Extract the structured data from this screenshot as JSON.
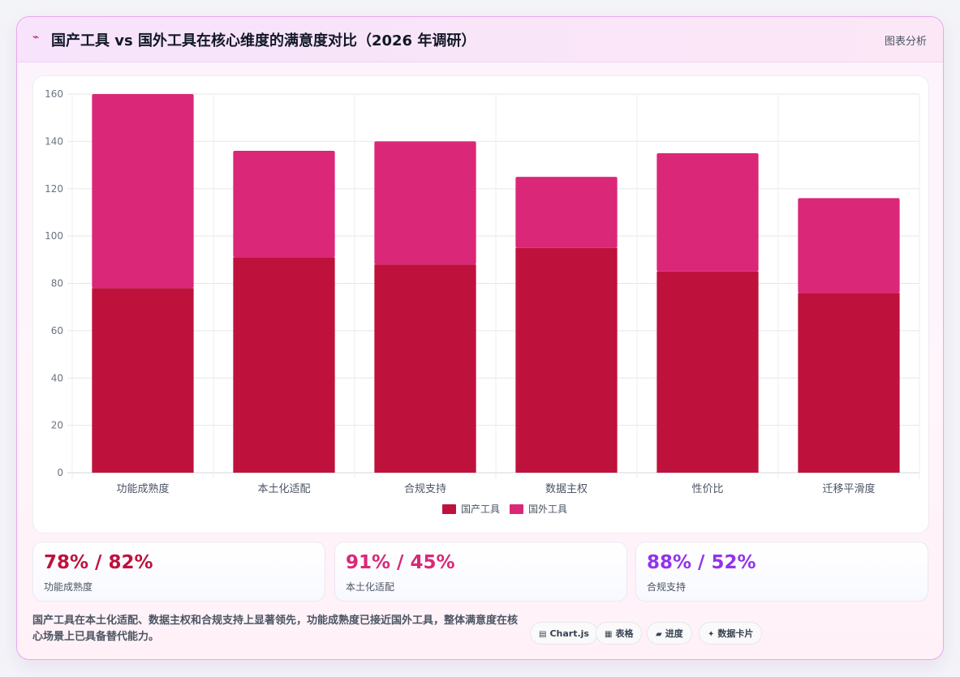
{
  "header": {
    "icon": "chart-line-icon",
    "icon_glyph": "⌁",
    "title": "国产工具 vs 国外工具在核心维度的满意度对比（2026 年调研）",
    "link": "图表分析"
  },
  "chart_data": {
    "type": "bar",
    "stacked": true,
    "categories": [
      "功能成熟度",
      "本土化适配",
      "合规支持",
      "数据主权",
      "性价比",
      "迁移平滑度"
    ],
    "series": [
      {
        "name": "国产工具",
        "values": [
          78,
          91,
          88,
          95,
          85,
          76
        ],
        "color": "#be123c"
      },
      {
        "name": "国外工具",
        "values": [
          82,
          45,
          52,
          30,
          50,
          40
        ],
        "color": "#db2777"
      }
    ],
    "ylim": [
      0,
      160
    ],
    "yticks": [
      0,
      20,
      40,
      60,
      80,
      100,
      120,
      140,
      160
    ],
    "grid": true,
    "legend": "bottom"
  },
  "kpis": [
    {
      "value": "78% / 82%",
      "label": "功能成熟度",
      "color": "#be123c"
    },
    {
      "value": "91% / 45%",
      "label": "本土化适配",
      "color": "#db2777"
    },
    {
      "value": "88% / 52%",
      "label": "合规支持",
      "color": "#9333ea"
    }
  ],
  "summary": "国产工具在本土化适配、数据主权和合规支持上显著领先，功能成熟度已接近国外工具，整体满意度在核心场景上已具备替代能力。",
  "tags": [
    {
      "icon": "chart-icon",
      "glyph": "▤",
      "label": "Chart.js"
    },
    {
      "icon": "table-icon",
      "glyph": "▦",
      "label": "表格"
    },
    {
      "icon": "progress-icon",
      "glyph": "▰",
      "label": "进度"
    },
    {
      "icon": "sparkle-icon",
      "glyph": "✦",
      "label": "数据卡片"
    }
  ]
}
